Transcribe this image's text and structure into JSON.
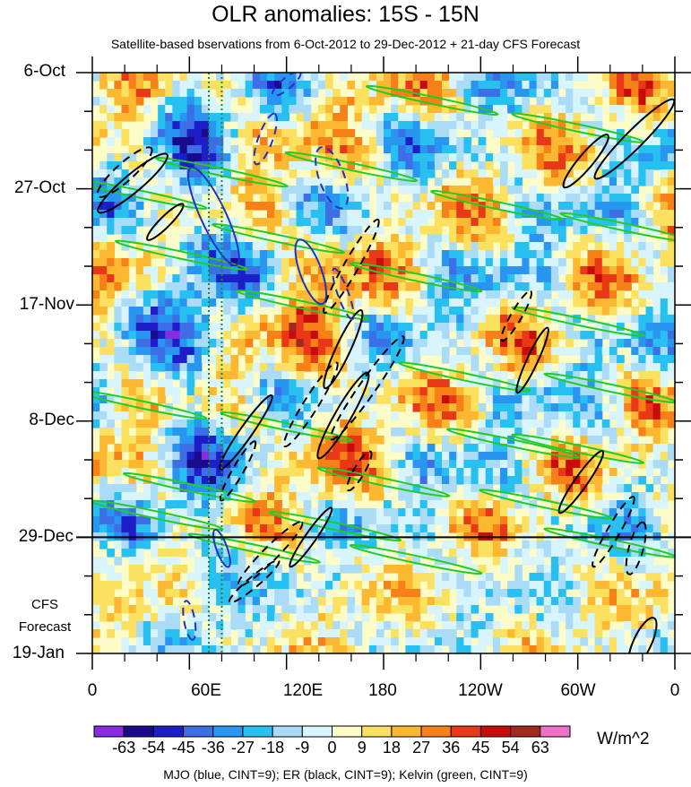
{
  "chart_data": {
    "type": "heatmap",
    "title": "OLR anomalies: 15S - 15N",
    "subtitle": "Satellite-based bservations from 6-Oct-2012 to 29-Dec-2012 + 21-day CFS Forecast",
    "x_ticks": [
      "0",
      "60E",
      "120E",
      "180",
      "120W",
      "60W",
      "0"
    ],
    "x_range_deg": [
      0,
      360
    ],
    "y_ticks": [
      "6-Oct",
      "27-Oct",
      "17-Nov",
      "8-Dec",
      "29-Dec",
      "19-Jan"
    ],
    "y_range_days": [
      0,
      105
    ],
    "observation_end_line": "29-Dec",
    "forecast_label": [
      "CFS",
      "Forecast"
    ],
    "colorbar": {
      "levels": [
        "-63",
        "-54",
        "-45",
        "-36",
        "-27",
        "-18",
        "-9",
        "0",
        "9",
        "18",
        "27",
        "36",
        "45",
        "54",
        "63"
      ],
      "colors": [
        "#8a2be2",
        "#1a0a8c",
        "#1e1ec8",
        "#3c6ee6",
        "#2896f0",
        "#28c0f0",
        "#aadcf8",
        "#d8f4fc",
        "#fcfcc8",
        "#fce060",
        "#fcb830",
        "#f88018",
        "#e83818",
        "#c80c0c",
        "#a0281e",
        "#f070c8"
      ],
      "units": "W/m^2"
    },
    "legend": "MJO (blue, CINT=9); ER (black, CINT=9); Kelvin (green, CINT=9)",
    "overlays": {
      "mjo_color": "#1e32c8",
      "er_color": "#000000",
      "kelvin_color": "#22cc22",
      "reference_lines_color": "#1a8a3a"
    }
  }
}
